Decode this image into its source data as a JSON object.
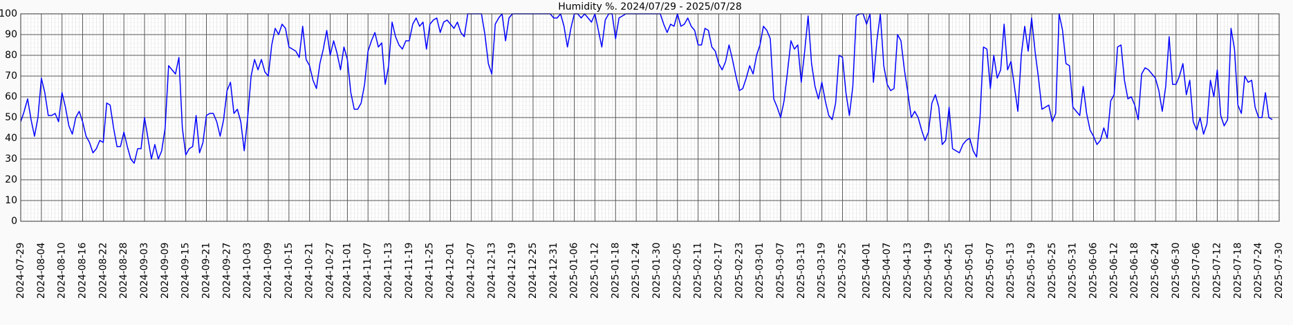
{
  "chart_data": {
    "type": "line",
    "title": "Humidity %. 2024/07/29 - 2025/07/28",
    "x": [
      "2024-07-29",
      "2024-07-30",
      "2024-07-31",
      "2024-08-01",
      "2024-08-02",
      "2024-08-03",
      "2024-08-04",
      "2024-08-05",
      "2024-08-06",
      "2024-08-07",
      "2024-08-08",
      "2024-08-09",
      "2024-08-10",
      "2024-08-11",
      "2024-08-12",
      "2024-08-13",
      "2024-08-14",
      "2024-08-15",
      "2024-08-16",
      "2024-08-17",
      "2024-08-18",
      "2024-08-19",
      "2024-08-20",
      "2024-08-21",
      "2024-08-22",
      "2024-08-23",
      "2024-08-24",
      "2024-08-25",
      "2024-08-26",
      "2024-08-27",
      "2024-08-28",
      "2024-08-29",
      "2024-08-30",
      "2024-08-31",
      "2024-09-01",
      "2024-09-02",
      "2024-09-03",
      "2024-09-04",
      "2024-09-05",
      "2024-09-06",
      "2024-09-07",
      "2024-09-08",
      "2024-09-09",
      "2024-09-10",
      "2024-09-11",
      "2024-09-12",
      "2024-09-13",
      "2024-09-14",
      "2024-09-15",
      "2024-09-16",
      "2024-09-17",
      "2024-09-18",
      "2024-09-19",
      "2024-09-20",
      "2024-09-21",
      "2024-09-22",
      "2024-09-23",
      "2024-09-24",
      "2024-09-25",
      "2024-09-26",
      "2024-09-27",
      "2024-09-28",
      "2024-09-29",
      "2024-09-30",
      "2024-10-01",
      "2024-10-02",
      "2024-10-03",
      "2024-10-04",
      "2024-10-05",
      "2024-10-06",
      "2024-10-07",
      "2024-10-08",
      "2024-10-09",
      "2024-10-10",
      "2024-10-11",
      "2024-10-12",
      "2024-10-13",
      "2024-10-14",
      "2024-10-15",
      "2024-10-16",
      "2024-10-17",
      "2024-10-18",
      "2024-10-19",
      "2024-10-20",
      "2024-10-21",
      "2024-10-22",
      "2024-10-23",
      "2024-10-24",
      "2024-10-25",
      "2024-10-26",
      "2024-10-27",
      "2024-10-28",
      "2024-10-29",
      "2024-10-30",
      "2024-10-31",
      "2024-11-01",
      "2024-11-02",
      "2024-11-03",
      "2024-11-04",
      "2024-11-05",
      "2024-11-06",
      "2024-11-07",
      "2024-11-08",
      "2024-11-09",
      "2024-11-10",
      "2024-11-11",
      "2024-11-12",
      "2024-11-13",
      "2024-11-14",
      "2024-11-15",
      "2024-11-16",
      "2024-11-17",
      "2024-11-18",
      "2024-11-19",
      "2024-11-20",
      "2024-11-21",
      "2024-11-22",
      "2024-11-23",
      "2024-11-24",
      "2024-11-25",
      "2024-11-26",
      "2024-11-27",
      "2024-11-28",
      "2024-11-29",
      "2024-11-30",
      "2024-12-01",
      "2024-12-02",
      "2024-12-03",
      "2024-12-04",
      "2024-12-05",
      "2024-12-06",
      "2024-12-07",
      "2024-12-08",
      "2024-12-09",
      "2024-12-10",
      "2024-12-11",
      "2024-12-12",
      "2024-12-13",
      "2024-12-14",
      "2024-12-15",
      "2024-12-16",
      "2024-12-17",
      "2024-12-18",
      "2024-12-19",
      "2024-12-20",
      "2024-12-21",
      "2024-12-22",
      "2024-12-23",
      "2024-12-24",
      "2024-12-25",
      "2024-12-26",
      "2024-12-27",
      "2024-12-28",
      "2024-12-29",
      "2024-12-30",
      "2024-12-31",
      "2025-01-01",
      "2025-01-02",
      "2025-01-03",
      "2025-01-04",
      "2025-01-05",
      "2025-01-06",
      "2025-01-07",
      "2025-01-08",
      "2025-01-09",
      "2025-01-10",
      "2025-01-11",
      "2025-01-12",
      "2025-01-13",
      "2025-01-14",
      "2025-01-15",
      "2025-01-16",
      "2025-01-17",
      "2025-01-18",
      "2025-01-19",
      "2025-01-20",
      "2025-01-21",
      "2025-01-22",
      "2025-01-23",
      "2025-01-24",
      "2025-01-25",
      "2025-01-26",
      "2025-01-27",
      "2025-01-28",
      "2025-01-29",
      "2025-01-30",
      "2025-01-31",
      "2025-02-01",
      "2025-02-02",
      "2025-02-03",
      "2025-02-04",
      "2025-02-05",
      "2025-02-06",
      "2025-02-07",
      "2025-02-08",
      "2025-02-09",
      "2025-02-10",
      "2025-02-11",
      "2025-02-12",
      "2025-02-13",
      "2025-02-14",
      "2025-02-15",
      "2025-02-16",
      "2025-02-17",
      "2025-02-18",
      "2025-02-19",
      "2025-02-20",
      "2025-02-21",
      "2025-02-22",
      "2025-02-23",
      "2025-02-24",
      "2025-02-25",
      "2025-02-26",
      "2025-02-27",
      "2025-02-28",
      "2025-03-01",
      "2025-03-02",
      "2025-03-03",
      "2025-03-04",
      "2025-03-05",
      "2025-03-06",
      "2025-03-07",
      "2025-03-08",
      "2025-03-09",
      "2025-03-10",
      "2025-03-11",
      "2025-03-12",
      "2025-03-13",
      "2025-03-14",
      "2025-03-15",
      "2025-03-16",
      "2025-03-17",
      "2025-03-18",
      "2025-03-19",
      "2025-03-20",
      "2025-03-21",
      "2025-03-22",
      "2025-03-23",
      "2025-03-24",
      "2025-03-25",
      "2025-03-26",
      "2025-03-27",
      "2025-03-28",
      "2025-03-29",
      "2025-03-30",
      "2025-03-31",
      "2025-04-01",
      "2025-04-02",
      "2025-04-03",
      "2025-04-04",
      "2025-04-05",
      "2025-04-06",
      "2025-04-07",
      "2025-04-08",
      "2025-04-09",
      "2025-04-10",
      "2025-04-11",
      "2025-04-12",
      "2025-04-13",
      "2025-04-14",
      "2025-04-15",
      "2025-04-16",
      "2025-04-17",
      "2025-04-18",
      "2025-04-19",
      "2025-04-20",
      "2025-04-21",
      "2025-04-22",
      "2025-04-23",
      "2025-04-24",
      "2025-04-25",
      "2025-04-26",
      "2025-04-27",
      "2025-04-28",
      "2025-04-29",
      "2025-04-30",
      "2025-05-01",
      "2025-05-02",
      "2025-05-03",
      "2025-05-04",
      "2025-05-05",
      "2025-05-06",
      "2025-05-07",
      "2025-05-08",
      "2025-05-09",
      "2025-05-10",
      "2025-05-11",
      "2025-05-12",
      "2025-05-13",
      "2025-05-14",
      "2025-05-15",
      "2025-05-16",
      "2025-05-17",
      "2025-05-18",
      "2025-05-19",
      "2025-05-20",
      "2025-05-21",
      "2025-05-22",
      "2025-05-23",
      "2025-05-24",
      "2025-05-25",
      "2025-05-26",
      "2025-05-27",
      "2025-05-28",
      "2025-05-29",
      "2025-05-30",
      "2025-05-31",
      "2025-06-01",
      "2025-06-02",
      "2025-06-03",
      "2025-06-04",
      "2025-06-05",
      "2025-06-06",
      "2025-06-07",
      "2025-06-08",
      "2025-06-09",
      "2025-06-10",
      "2025-06-11",
      "2025-06-12",
      "2025-06-13",
      "2025-06-14",
      "2025-06-15",
      "2025-06-16",
      "2025-06-17",
      "2025-06-18",
      "2025-06-19",
      "2025-06-20",
      "2025-06-21",
      "2025-06-22",
      "2025-06-23",
      "2025-06-24",
      "2025-06-25",
      "2025-06-26",
      "2025-06-27",
      "2025-06-28",
      "2025-06-29",
      "2025-06-30",
      "2025-07-01",
      "2025-07-02",
      "2025-07-03",
      "2025-07-04",
      "2025-07-05",
      "2025-07-06",
      "2025-07-07",
      "2025-07-08",
      "2025-07-09",
      "2025-07-10",
      "2025-07-11",
      "2025-07-12",
      "2025-07-13",
      "2025-07-14",
      "2025-07-15",
      "2025-07-16",
      "2025-07-17",
      "2025-07-18",
      "2025-07-19",
      "2025-07-20",
      "2025-07-21",
      "2025-07-22",
      "2025-07-23",
      "2025-07-24",
      "2025-07-25",
      "2025-07-26",
      "2025-07-27",
      "2025-07-28"
    ],
    "series": [
      {
        "name": "Humidity",
        "color": "#0000ff",
        "values": [
          48,
          53,
          59,
          49,
          41,
          50,
          69,
          62,
          51,
          51,
          52,
          48,
          62,
          55,
          46,
          42,
          50,
          53,
          48,
          41,
          38,
          33,
          35,
          39,
          38,
          57,
          56,
          45,
          36,
          36,
          43,
          36,
          30,
          28,
          35,
          35,
          50,
          40,
          30,
          37,
          30,
          34,
          45,
          75,
          73,
          71,
          79,
          45,
          32,
          35,
          36,
          51,
          33,
          38,
          51,
          52,
          52,
          48,
          41,
          49,
          63,
          67,
          52,
          54,
          48,
          34,
          50,
          70,
          78,
          73,
          78,
          72,
          70,
          85,
          93,
          90,
          95,
          93,
          84,
          83,
          82,
          79,
          94,
          78,
          75,
          68,
          64,
          76,
          83,
          92,
          80,
          87,
          81,
          73,
          84,
          78,
          62,
          54,
          54,
          57,
          66,
          82,
          87,
          91,
          84,
          86,
          66,
          75,
          96,
          89,
          85,
          83,
          87,
          87,
          95,
          98,
          94,
          96,
          83,
          95,
          97,
          98,
          91,
          96,
          97,
          95,
          93,
          96,
          91,
          89,
          100,
          100,
          100,
          100,
          100,
          90,
          76,
          71,
          95,
          98,
          100,
          87,
          98,
          100,
          100,
          100,
          100,
          100,
          100,
          100,
          100,
          100,
          100,
          100,
          100,
          98,
          98,
          100,
          94,
          84,
          93,
          100,
          100,
          98,
          100,
          98,
          96,
          100,
          92,
          84,
          97,
          100,
          100,
          88,
          98,
          99,
          100,
          100,
          100,
          100,
          100,
          100,
          100,
          100,
          100,
          100,
          100,
          95,
          91,
          95,
          94,
          100,
          94,
          95,
          98,
          94,
          92,
          85,
          85,
          93,
          92,
          84,
          82,
          76,
          73,
          77,
          85,
          78,
          70,
          63,
          64,
          69,
          75,
          71,
          80,
          85,
          94,
          92,
          88,
          59,
          55,
          50,
          58,
          72,
          87,
          83,
          85,
          67,
          82,
          99,
          76,
          65,
          59,
          67,
          58,
          51,
          49,
          57,
          80,
          79,
          62,
          51,
          65,
          99,
          100,
          100,
          95,
          100,
          67,
          87,
          100,
          75,
          66,
          63,
          64,
          90,
          87,
          73,
          62,
          50,
          53,
          50,
          44,
          39,
          43,
          57,
          61,
          55,
          37,
          39,
          55,
          35,
          34,
          33,
          37,
          39,
          40,
          34,
          31,
          50,
          84,
          83,
          64,
          80,
          69,
          73,
          95,
          73,
          77,
          65,
          53,
          80,
          94,
          82,
          98,
          82,
          69,
          54,
          55,
          56,
          48,
          52,
          100,
          92,
          76,
          75,
          55,
          53,
          51,
          65,
          52,
          44,
          41,
          37,
          39,
          45,
          40,
          58,
          61,
          84,
          85,
          68,
          59,
          60,
          56,
          49,
          71,
          74,
          73,
          71,
          69,
          63,
          53,
          65,
          89,
          66,
          66,
          70,
          76,
          61,
          68,
          48,
          44,
          50,
          42,
          47,
          68,
          60,
          73,
          51,
          46,
          49,
          93,
          83,
          56,
          52,
          70,
          67,
          68,
          55,
          50,
          50,
          62,
          50,
          49
        ]
      }
    ],
    "xlim": [
      "2024-07-29",
      "2025-07-30"
    ],
    "xticks": [
      "2024-07-29",
      "2024-08-04",
      "2024-08-10",
      "2024-08-16",
      "2024-08-22",
      "2024-08-28",
      "2024-09-03",
      "2024-09-09",
      "2024-09-15",
      "2024-09-21",
      "2024-09-27",
      "2024-10-03",
      "2024-10-09",
      "2024-10-15",
      "2024-10-21",
      "2024-10-27",
      "2024-11-01",
      "2024-11-07",
      "2024-11-13",
      "2024-11-19",
      "2024-11-25",
      "2024-12-01",
      "2024-12-07",
      "2024-12-13",
      "2024-12-19",
      "2024-12-25",
      "2024-12-31",
      "2025-01-06",
      "2025-01-12",
      "2025-01-18",
      "2025-01-24",
      "2025-01-30",
      "2025-02-05",
      "2025-02-11",
      "2025-02-17",
      "2025-02-23",
      "2025-03-01",
      "2025-03-07",
      "2025-03-13",
      "2025-03-19",
      "2025-03-25",
      "2025-04-01",
      "2025-04-07",
      "2025-04-13",
      "2025-04-19",
      "2025-04-25",
      "2025-05-01",
      "2025-05-07",
      "2025-05-13",
      "2025-05-19",
      "2025-05-25",
      "2025-05-31",
      "2025-06-06",
      "2025-06-12",
      "2025-06-18",
      "2025-06-24",
      "2025-06-30",
      "2025-07-06",
      "2025-07-12",
      "2025-07-18",
      "2025-07-24",
      "2025-07-30"
    ],
    "ylim": [
      0,
      100
    ],
    "yticks": [
      0,
      10,
      20,
      30,
      40,
      50,
      60,
      70,
      80,
      90,
      100
    ],
    "grid": true
  }
}
